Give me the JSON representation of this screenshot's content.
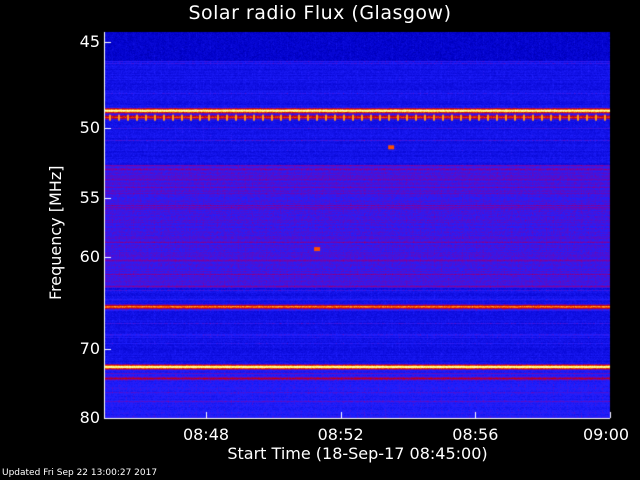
{
  "chart_data": {
    "type": "heatmap",
    "title": "Solar radio Flux (Glasgow)",
    "xlabel": "Start Time (18-Sep-17 08:45:00)",
    "ylabel": "Frequency [MHz]",
    "x_ticks": [
      "08:48",
      "08:52",
      "08:56",
      "09:00"
    ],
    "x_tick_minutes": [
      3,
      7,
      11,
      15
    ],
    "x_range_minutes": [
      0,
      15
    ],
    "y_ticks": [
      45,
      50,
      55,
      60,
      70,
      80
    ],
    "y_range_mhz": [
      44.5,
      80
    ],
    "y_scale": "reciprocal",
    "colormap": [
      "#000000",
      "#0000c8",
      "#2020ff",
      "#8000a0",
      "#c00000",
      "#ff6000",
      "#ffff60",
      "#ffffff"
    ],
    "bright_bands": [
      {
        "mhz": 48.9,
        "intensity": 1.0
      },
      {
        "mhz": 49.3,
        "intensity": 0.7
      },
      {
        "mhz": 52.8,
        "intensity": 0.45
      },
      {
        "mhz": 65.0,
        "intensity": 0.8
      },
      {
        "mhz": 72.3,
        "intensity": 1.0
      },
      {
        "mhz": 73.9,
        "intensity": 0.55
      }
    ],
    "bursts": [
      {
        "minute": 8.5,
        "mhz": 51.3
      },
      {
        "minute": 6.3,
        "mhz": 59.3
      }
    ]
  },
  "footer": "Updated Fri Sep 22 13:00:27 2017"
}
